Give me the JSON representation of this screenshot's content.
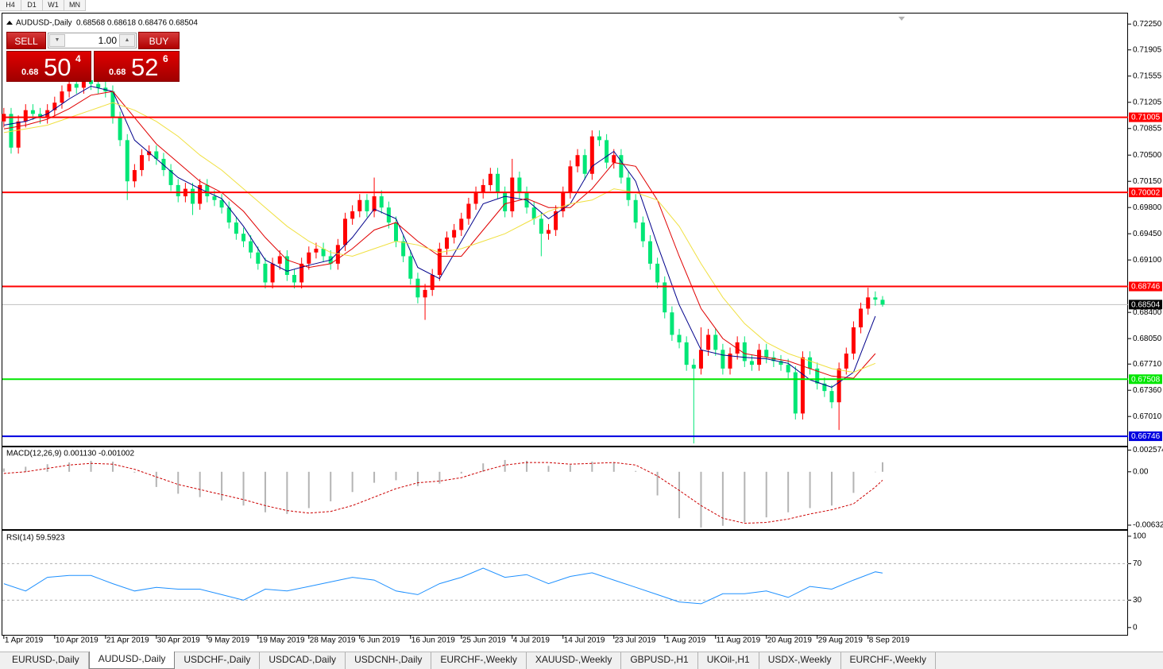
{
  "toolbar": {
    "timeframes": [
      "H4",
      "D1",
      "W1",
      "MN"
    ]
  },
  "trade_panel": {
    "sell_label": "SELL",
    "buy_label": "BUY",
    "volume": "1.00",
    "sell_price": {
      "small": "0.68",
      "big": "50",
      "sup": "4"
    },
    "buy_price": {
      "small": "0.68",
      "big": "52",
      "sup": "6"
    }
  },
  "tabs": {
    "items": [
      "EURUSD-,Daily",
      "AUDUSD-,Daily",
      "USDCHF-,Daily",
      "USDCAD-,Daily",
      "USDCNH-,Daily",
      "EURCHF-,Weekly",
      "XAUUSD-,Weekly",
      "GBPUSD-,H1",
      "UKOil-,H1",
      "USDX-,Weekly",
      "EURCHF-,Weekly"
    ],
    "active": 1
  },
  "chart_data": [
    {
      "type": "candlestick",
      "title": "AUDUSD-,Daily",
      "ohlc_text": "0.68568 0.68618 0.68476 0.68504",
      "xlim": [
        -0.2,
        154.8
      ],
      "ylim": [
        0.6663,
        0.7238
      ],
      "yticks": [
        {
          "value": 0.7225,
          "label": "0.72250"
        },
        0.71905,
        0.71555,
        0.71205,
        0.70855,
        {
          "value": 0.705,
          "label": "0.70500"
        },
        {
          "value": 0.7015,
          "label": "0.70150"
        },
        {
          "value": 0.698,
          "label": "0.69800"
        },
        {
          "value": 0.6945,
          "label": "0.69450"
        },
        {
          "value": 0.691,
          "label": "0.69100"
        },
        {
          "value": 0.684,
          "label": "0.68400"
        },
        {
          "value": 0.6805,
          "label": "0.68050"
        },
        {
          "value": 0.6771,
          "label": "0.67710"
        },
        {
          "value": 0.6736,
          "label": "0.67360"
        },
        {
          "value": 0.6701,
          "label": "0.67010"
        }
      ],
      "bull_color": "#ff0000",
      "bear_color": "#00e676",
      "open": [
        0.7095,
        0.7105,
        0.706,
        0.7095,
        0.711,
        0.7105,
        0.71,
        0.711,
        0.712,
        0.7135,
        0.7145,
        0.714,
        0.715,
        0.7145,
        0.714,
        0.7135,
        0.71,
        0.707,
        0.7015,
        0.703,
        0.705,
        0.7055,
        0.7045,
        0.703,
        0.701,
        0.6995,
        0.7005,
        0.6985,
        0.701,
        0.6995,
        0.699,
        0.698,
        0.696,
        0.6945,
        0.6935,
        0.692,
        0.6905,
        0.688,
        0.6905,
        0.6915,
        0.689,
        0.688,
        0.6905,
        0.692,
        0.6925,
        0.6915,
        0.6905,
        0.693,
        0.6965,
        0.6975,
        0.699,
        0.6975,
        0.6995,
        0.698,
        0.696,
        0.6935,
        0.6915,
        0.6885,
        0.686,
        0.687,
        0.689,
        0.6925,
        0.694,
        0.695,
        0.6965,
        0.6985,
        0.7,
        0.701,
        0.7025,
        0.7,
        0.6975,
        0.702,
        0.7,
        0.698,
        0.6965,
        0.6945,
        0.695,
        0.6975,
        0.7,
        0.7035,
        0.705,
        0.7025,
        0.7075,
        0.707,
        0.704,
        0.705,
        0.702,
        0.699,
        0.696,
        0.6935,
        0.6905,
        0.688,
        0.684,
        0.681,
        0.68,
        0.677,
        0.6765,
        0.679,
        0.681,
        0.679,
        0.6765,
        0.6785,
        0.68,
        0.6775,
        0.677,
        0.679,
        0.678,
        0.6775,
        0.677,
        0.676,
        0.6705,
        0.678,
        0.6765,
        0.6745,
        0.6735,
        0.672,
        0.6765,
        0.6785,
        0.682,
        0.6845,
        0.686,
        0.68568
      ],
      "high": [
        0.7113,
        0.7113,
        0.7103,
        0.7118,
        0.7118,
        0.7113,
        0.7118,
        0.7128,
        0.7143,
        0.7153,
        0.7153,
        0.7158,
        0.7158,
        0.7153,
        0.7148,
        0.7143,
        0.7108,
        0.7078,
        0.7038,
        0.7058,
        0.7063,
        0.7063,
        0.7053,
        0.7038,
        0.7018,
        0.7013,
        0.7013,
        0.7018,
        0.7018,
        0.7003,
        0.6998,
        0.6988,
        0.6968,
        0.6953,
        0.6943,
        0.6928,
        0.6913,
        0.6913,
        0.6923,
        0.6923,
        0.6898,
        0.6913,
        0.6928,
        0.6933,
        0.6933,
        0.6923,
        0.6938,
        0.6973,
        0.6983,
        0.6998,
        0.6998,
        0.702,
        0.7003,
        0.6988,
        0.6968,
        0.6943,
        0.6923,
        0.6893,
        0.6878,
        0.6898,
        0.6933,
        0.6948,
        0.6958,
        0.6973,
        0.6993,
        0.7008,
        0.7018,
        0.7033,
        0.7033,
        0.7008,
        0.7045,
        0.7028,
        0.7008,
        0.6988,
        0.6973,
        0.6958,
        0.6983,
        0.7008,
        0.7043,
        0.7058,
        0.7058,
        0.7083,
        0.7083,
        0.7078,
        0.7058,
        0.7058,
        0.7028,
        0.6998,
        0.6968,
        0.6943,
        0.6913,
        0.6888,
        0.6848,
        0.6818,
        0.6808,
        0.6778,
        0.682,
        0.6818,
        0.6818,
        0.6798,
        0.6793,
        0.6808,
        0.6808,
        0.6783,
        0.6798,
        0.6798,
        0.6788,
        0.6783,
        0.6778,
        0.6768,
        0.6788,
        0.6788,
        0.6773,
        0.6753,
        0.6743,
        0.6773,
        0.6793,
        0.6828,
        0.6853,
        0.6873,
        0.6868,
        0.68618
      ],
      "low": [
        0.7087,
        0.7052,
        0.7052,
        0.7087,
        0.7097,
        0.7092,
        0.7092,
        0.7102,
        0.7112,
        0.7127,
        0.7132,
        0.7132,
        0.7137,
        0.7132,
        0.7127,
        0.7092,
        0.7062,
        0.699,
        0.7007,
        0.7022,
        0.7042,
        0.7037,
        0.7022,
        0.7002,
        0.6987,
        0.6987,
        0.697,
        0.6977,
        0.6987,
        0.6982,
        0.6972,
        0.6952,
        0.6937,
        0.6927,
        0.6912,
        0.6897,
        0.6872,
        0.6872,
        0.6897,
        0.6882,
        0.6872,
        0.6872,
        0.6897,
        0.6912,
        0.6907,
        0.6897,
        0.6897,
        0.6922,
        0.6957,
        0.6967,
        0.6967,
        0.6967,
        0.6972,
        0.6952,
        0.6927,
        0.6907,
        0.6877,
        0.6852,
        0.683,
        0.6862,
        0.6882,
        0.6917,
        0.6932,
        0.6942,
        0.6957,
        0.6977,
        0.6992,
        0.7002,
        0.6992,
        0.6967,
        0.6967,
        0.6992,
        0.6972,
        0.6957,
        0.6915,
        0.6937,
        0.6942,
        0.6967,
        0.6992,
        0.7027,
        0.7017,
        0.7017,
        0.7062,
        0.7032,
        0.7032,
        0.7012,
        0.6982,
        0.6952,
        0.6927,
        0.6897,
        0.6872,
        0.6832,
        0.6802,
        0.6792,
        0.6762,
        0.6665,
        0.6757,
        0.6782,
        0.6782,
        0.6757,
        0.6757,
        0.6777,
        0.6767,
        0.6762,
        0.6762,
        0.6772,
        0.6767,
        0.6762,
        0.6752,
        0.6697,
        0.6697,
        0.6757,
        0.6737,
        0.6727,
        0.6712,
        0.6683,
        0.6757,
        0.6777,
        0.6812,
        0.6837,
        0.6849,
        0.68476
      ],
      "close": [
        0.7105,
        0.706,
        0.7095,
        0.711,
        0.7105,
        0.71,
        0.711,
        0.712,
        0.7135,
        0.7145,
        0.714,
        0.715,
        0.7145,
        0.714,
        0.7135,
        0.71,
        0.707,
        0.7015,
        0.703,
        0.705,
        0.7055,
        0.7045,
        0.703,
        0.701,
        0.6995,
        0.7005,
        0.6985,
        0.701,
        0.6995,
        0.699,
        0.698,
        0.696,
        0.6945,
        0.6935,
        0.692,
        0.6905,
        0.688,
        0.6905,
        0.6915,
        0.689,
        0.688,
        0.6905,
        0.692,
        0.6925,
        0.6915,
        0.6905,
        0.693,
        0.6965,
        0.6975,
        0.699,
        0.6975,
        0.6995,
        0.698,
        0.696,
        0.6935,
        0.6915,
        0.6885,
        0.686,
        0.687,
        0.689,
        0.6925,
        0.694,
        0.695,
        0.6965,
        0.6985,
        0.7,
        0.701,
        0.7025,
        0.7,
        0.6975,
        0.702,
        0.7,
        0.698,
        0.6965,
        0.6945,
        0.695,
        0.6975,
        0.7,
        0.7035,
        0.705,
        0.7025,
        0.7075,
        0.707,
        0.704,
        0.705,
        0.702,
        0.699,
        0.696,
        0.6935,
        0.6905,
        0.688,
        0.684,
        0.681,
        0.68,
        0.677,
        0.6765,
        0.679,
        0.681,
        0.679,
        0.6765,
        0.6785,
        0.68,
        0.6775,
        0.677,
        0.679,
        0.678,
        0.6775,
        0.677,
        0.676,
        0.6705,
        0.678,
        0.6765,
        0.6745,
        0.6735,
        0.672,
        0.6765,
        0.6785,
        0.682,
        0.6845,
        0.686,
        0.6857,
        0.68504
      ],
      "overlay_x": [
        0,
        3,
        6,
        9,
        12,
        15,
        18,
        21,
        24,
        27,
        30,
        33,
        36,
        39,
        42,
        45,
        48,
        51,
        54,
        57,
        60,
        63,
        66,
        69,
        72,
        75,
        78,
        81,
        84,
        87,
        90,
        93,
        96,
        99,
        102,
        105,
        108,
        111,
        114,
        117,
        120
      ],
      "overlays": [
        {
          "color": "#00008b",
          "values": [
            0.709,
            0.7095,
            0.7105,
            0.7125,
            0.7142,
            0.7135,
            0.707,
            0.7045,
            0.702,
            0.7005,
            0.6992,
            0.6955,
            0.691,
            0.6895,
            0.6903,
            0.691,
            0.694,
            0.6978,
            0.6965,
            0.69,
            0.6885,
            0.6935,
            0.6985,
            0.6995,
            0.699,
            0.6965,
            0.6985,
            0.7035,
            0.7055,
            0.7015,
            0.693,
            0.685,
            0.679,
            0.6783,
            0.678,
            0.6778,
            0.6772,
            0.675,
            0.674,
            0.676,
            0.6835
          ]
        },
        {
          "color": "#e00000",
          "values": [
            0.7085,
            0.709,
            0.7098,
            0.7112,
            0.713,
            0.7135,
            0.71,
            0.7065,
            0.704,
            0.7015,
            0.7,
            0.6975,
            0.694,
            0.691,
            0.69,
            0.6905,
            0.6925,
            0.695,
            0.696,
            0.6935,
            0.6915,
            0.6915,
            0.695,
            0.6985,
            0.6992,
            0.698,
            0.698,
            0.7005,
            0.704,
            0.7035,
            0.699,
            0.6915,
            0.6845,
            0.6805,
            0.6785,
            0.678,
            0.6775,
            0.6765,
            0.6755,
            0.6752,
            0.6785
          ]
        },
        {
          "color": "#f0e040",
          "values": [
            0.708,
            0.7085,
            0.709,
            0.71,
            0.711,
            0.712,
            0.711,
            0.7095,
            0.7075,
            0.705,
            0.703,
            0.7005,
            0.698,
            0.6955,
            0.6935,
            0.692,
            0.6915,
            0.6925,
            0.6935,
            0.693,
            0.692,
            0.6925,
            0.6935,
            0.6945,
            0.696,
            0.6975,
            0.6985,
            0.699,
            0.7005,
            0.7,
            0.699,
            0.6955,
            0.6905,
            0.686,
            0.6825,
            0.68,
            0.6785,
            0.6775,
            0.6765,
            0.676,
            0.6772
          ]
        }
      ],
      "levels": [
        {
          "value": 0.71005,
          "color": "#ff0000"
        },
        {
          "value": 0.70002,
          "color": "#ff0000"
        },
        {
          "value": 0.68746,
          "color": "#ff0000"
        },
        {
          "value": 0.67508,
          "color": "#00e600"
        },
        {
          "value": 0.66746,
          "color": "#0000e0"
        }
      ],
      "bid": {
        "value": 0.68504,
        "color": "#c0c0c0"
      }
    },
    {
      "type": "macd",
      "title": "MACD(12,26,9) 0.001130 -0.001002",
      "xlim": [
        -0.2,
        154.8
      ],
      "ylim": [
        -0.0068,
        0.0029
      ],
      "yticks": [
        0.002574,
        {
          "value": 0,
          "label": "0.00"
        },
        -0.006326
      ],
      "hist_color": "#b4b4b4",
      "signal_color": "#cc0000",
      "x": [
        0,
        3,
        6,
        9,
        12,
        15,
        18,
        21,
        24,
        27,
        30,
        33,
        36,
        39,
        42,
        45,
        48,
        51,
        54,
        57,
        60,
        63,
        66,
        69,
        72,
        75,
        78,
        81,
        84,
        87,
        90,
        93,
        96,
        99,
        102,
        105,
        108,
        111,
        114,
        117,
        120,
        121
      ],
      "histogram": [
        0.0004,
        0.0006,
        0.0009,
        0.0011,
        0.0013,
        0.0012,
        -0.0001,
        -0.0018,
        -0.0026,
        -0.003,
        -0.0034,
        -0.004,
        -0.0048,
        -0.005,
        -0.0043,
        -0.0035,
        -0.0024,
        -0.0013,
        -0.001,
        -0.0017,
        -0.0014,
        -0.0002,
        0.001,
        0.0014,
        0.0013,
        0.0007,
        0.0008,
        0.0012,
        0.0011,
        0.0001,
        -0.0028,
        -0.0055,
        -0.0066,
        -0.0064,
        -0.006,
        -0.0054,
        -0.0048,
        -0.0043,
        -0.004,
        -0.0025,
        0.0,
        0.00113
      ],
      "signal": [
        -0.0002,
        0.0,
        0.0004,
        0.0008,
        0.001,
        0.0009,
        0.0003,
        -0.0006,
        -0.0015,
        -0.0021,
        -0.0027,
        -0.0033,
        -0.004,
        -0.0046,
        -0.0049,
        -0.0047,
        -0.004,
        -0.003,
        -0.002,
        -0.0013,
        -0.0011,
        -0.0007,
        0.0001,
        0.0008,
        0.0011,
        0.0011,
        0.0009,
        0.001,
        0.0011,
        0.0008,
        -0.0005,
        -0.0022,
        -0.004,
        -0.0055,
        -0.0061,
        -0.006,
        -0.0056,
        -0.005,
        -0.0045,
        -0.0038,
        -0.0018,
        -0.001002
      ]
    },
    {
      "type": "line",
      "title": "RSI(14) 59.5923",
      "xlim": [
        -0.2,
        154.8
      ],
      "ylim": [
        -8,
        106
      ],
      "yticks": [
        100,
        70,
        30,
        0
      ],
      "levels": [
        70,
        30
      ],
      "color": "#1e90ff",
      "x": [
        0,
        3,
        6,
        9,
        12,
        15,
        18,
        21,
        24,
        27,
        30,
        33,
        36,
        39,
        42,
        45,
        48,
        51,
        54,
        57,
        60,
        63,
        66,
        69,
        72,
        75,
        78,
        81,
        84,
        87,
        90,
        93,
        96,
        99,
        102,
        105,
        108,
        111,
        114,
        117,
        120,
        121
      ],
      "values": [
        48,
        40,
        55,
        57,
        57,
        48,
        40,
        44,
        42,
        42,
        36,
        30,
        42,
        40,
        45,
        50,
        55,
        52,
        40,
        36,
        48,
        55,
        65,
        55,
        58,
        48,
        56,
        60,
        52,
        44,
        36,
        28,
        26,
        37,
        37,
        40,
        33,
        45,
        42,
        52,
        61,
        59.5923
      ],
      "xticks": [
        {
          "value": 0,
          "label": "1 Apr 2019"
        },
        {
          "value": 7,
          "label": "10 Apr 2019"
        },
        {
          "value": 14,
          "label": "21 Apr 2019"
        },
        {
          "value": 21,
          "label": "30 Apr 2019"
        },
        {
          "value": 28,
          "label": "9 May 2019"
        },
        {
          "value": 35,
          "label": "19 May 2019"
        },
        {
          "value": 42,
          "label": "28 May 2019"
        },
        {
          "value": 49,
          "label": "6 Jun 2019"
        },
        {
          "value": 56,
          "label": "16 Jun 2019"
        },
        {
          "value": 63,
          "label": "25 Jun 2019"
        },
        {
          "value": 70,
          "label": "4 Jul 2019"
        },
        {
          "value": 77,
          "label": "14 Jul 2019"
        },
        {
          "value": 84,
          "label": "23 Jul 2019"
        },
        {
          "value": 91,
          "label": "1 Aug 2019"
        },
        {
          "value": 98,
          "label": "11 Aug 2019"
        },
        {
          "value": 105,
          "label": "20 Aug 2019"
        },
        {
          "value": 112,
          "label": "29 Aug 2019"
        },
        {
          "value": 119,
          "label": "8 Sep 2019"
        }
      ]
    }
  ]
}
